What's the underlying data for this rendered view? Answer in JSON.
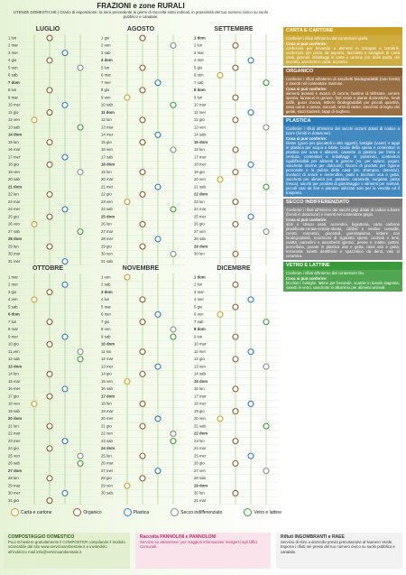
{
  "header": {
    "title": "FRAZIONI e zone RURALI",
    "subtitle": "UTENZE DOMESTICHE | Orario di esposizione: la sera precedente ai giorni di raccolta sotto indicati, in prossimità del tuo numero civico su suolo pubblico e canalale."
  },
  "months": [
    {
      "name": "LUGLIO",
      "days": [
        "1 lun",
        "2 mar",
        "3 mer",
        "4 gio",
        "5 ven",
        "6 sab",
        "7 dom",
        "8 lun",
        "9 mar",
        "10 mer",
        "11 gio",
        "12 ven",
        "13 sab",
        "14 dom",
        "15 lun",
        "16 mar",
        "17 mer",
        "18 gio",
        "19 ven",
        "20 sab",
        "21 dom",
        "22 lun",
        "23 mar",
        "24 mer",
        "25 gio",
        "26 ven",
        "27 sab",
        "28 dom",
        "29 lun",
        "30 mar",
        "31 mer"
      ]
    },
    {
      "name": "AGOSTO",
      "days": [
        "1 gio",
        "2 ven",
        "3 sab",
        "4 dom",
        "5 lun",
        "6 mar",
        "7 mer",
        "8 gio",
        "9 ven",
        "10 sab",
        "11 dom",
        "12 lun",
        "13 mar",
        "14 mer",
        "15 gio",
        "16 ven",
        "17 sab",
        "18 dom",
        "19 lun",
        "20 mar",
        "21 mer",
        "22 gio",
        "23 ven",
        "24 sab",
        "25 dom",
        "26 lun",
        "27 mar",
        "28 mer",
        "29 gio",
        "30 ven",
        "31 sab"
      ]
    },
    {
      "name": "SETTEMBRE",
      "days": [
        "1 dom",
        "2 lun",
        "3 mar",
        "4 mer",
        "5 gio",
        "6 ven",
        "7 sab",
        "8 dom",
        "9 lun",
        "10 mar",
        "11 mer",
        "12 gio",
        "13 ven",
        "14 sab",
        "15 dom",
        "16 lun",
        "17 mar",
        "18 mer",
        "19 gio",
        "20 ven",
        "21 sab",
        "22 dom",
        "23 lun",
        "24 mar",
        "25 mer",
        "26 gio",
        "27 ven",
        "28 sab",
        "29 dom",
        "30 lun"
      ]
    },
    {
      "name": "OTTOBRE",
      "days": [
        "1 mar",
        "2 mer",
        "3 gio",
        "4 ven",
        "5 sab",
        "6 dom",
        "7 lun",
        "8 mar",
        "9 mer",
        "10 gio",
        "11 ven",
        "12 sab",
        "13 dom",
        "14 lun",
        "15 mar",
        "16 mer",
        "17 gio",
        "18 ven",
        "19 sab",
        "20 dom",
        "21 lun",
        "22 mar",
        "23 mer",
        "24 gio",
        "25 ven",
        "26 sab",
        "27 dom",
        "28 lun",
        "29 mar",
        "30 mer",
        "31 gio"
      ]
    },
    {
      "name": "NOVEMBRE",
      "days": [
        "1 ven",
        "2 sab",
        "3 dom",
        "4 lun",
        "5 mar",
        "6 mer",
        "7 gio",
        "8 ven",
        "9 sab",
        "10 dom",
        "11 lun",
        "12 mar",
        "13 mer",
        "14 gio",
        "15 ven",
        "16 sab",
        "17 dom",
        "18 lun",
        "19 mar",
        "20 mer",
        "21 gio",
        "22 ven",
        "23 sab",
        "24 dom",
        "25 lun",
        "26 mar",
        "27 mer",
        "28 gio",
        "29 ven",
        "30 sab"
      ]
    },
    {
      "name": "DICEMBRE",
      "days": [
        "1 dom",
        "2 lun",
        "3 mar",
        "4 mer",
        "5 gio",
        "6 ven",
        "7 sab",
        "8 dom",
        "9 lun",
        "10 mar",
        "11 mer",
        "12 gio",
        "13 ven",
        "14 sab",
        "15 dom",
        "16 lun",
        "17 mar",
        "18 mer",
        "19 gio",
        "20 ven",
        "21 sab",
        "22 dom",
        "23 lun",
        "24 mar",
        "25 mer",
        "26 gio",
        "27 ven",
        "28 sab",
        "29 dom",
        "30 lun",
        "31 mar"
      ]
    }
  ],
  "sections": [
    {
      "title": "CARTA E CARTONE",
      "intro": "Conferire i rifiuti all'interno del contenitore giallo.",
      "label": "Cosa si può conferire:",
      "items": "confezioni per bevande e alimenti in tetrapak e tetrabrik, confezioni per pizza da asporto, fazzoletti e tovaglioli di carta usati, giornali, imballaggi in carta o cartone (es. della pasta, dei biscotti), sacchetti in carta, scontrini."
    },
    {
      "title": "ORGANICO",
      "intro": "Conferire i rifiuti all'interno di sacchetti biodegradabili (non forniti) e inseriti nel contenitore marrone.",
      "label": "Cosa si può conferire:",
      "items": "alimenti avariati e avanzi di cucina, bustine di tè/tisane, cenere spenta, farinacei in genere, fiori recisi e piante domestiche, fondi caffè, gusci d'uova, lettiere biodegradabili per piccoli quantità, ossa carne e pesce, noccioli, resti di carne, stecchini di legno dei gelati, stuzzicadenti, tappi di sughero."
    },
    {
      "title": "PLASTICA",
      "intro": "Conferire i rifiuti all'interno dei sacchi azzurri dotati di codice a barre (forniti in dotazione).",
      "label": "Cosa si può conferire:",
      "items": "blister (gusci per giocattoli o altri oggetti), bottiglie (vuote) e tappi in plastica per acqua e bibite, buste della spesa e contenitori in plastica per uova e alimenti, cassette in plastica per frutta e verdura, contenitori e imballaggi in polistirolo, contenitori rigidi/flessibili per alimenti in genere (es. per salumi, yogurt, vaschette interne per dolciumi), flaconi di prodotti per l'igiene personale e la pulizia della casa (es. shampoo, detersivi), involucri di snack e merendine, piatti e bicchieri usa e getta, sacchetti per alimenti (es. patatine, caramelle, surgelati, pasta fresca), sacchi per prodotti di giardinaggio o alimenti per animali, piccoli vasi da fiori e piantine utilizzati solo per la vendita ed il trasporto."
    },
    {
      "title": "SECCO INDIFFERENZIATO",
      "intro": "Conferire i rifiuti all'interno dei sacchi grigi dotati di codice a barre (forniti in dotazione) e inseriti nel contenitore grigio.",
      "label": "Cosa si può conferire:",
      "items": "abiti e stracci usati, accendini, bigiotteria, carta carbone plastificata-cerata-vetrata-oleata, cd/dvd e relative custodie, cerotti, cosmetici, giocattoli, gommapiuma, lettiere non biodegradabili, mozziconi di sigaretta spenti, occhiali e lenti, ovatta, pannolini e assorbenti igienici, penne e matite, pettini, porcellana, posate in plastica usa e getta, rasoi usa e getta, terracotta, tubetti dentifricio e spazzolino da denti, vasi in ceramica."
    },
    {
      "title": "VETRO E LATTINE",
      "intro": "Conferire i rifiuti all'interno del contenitore blu.",
      "label": "Cosa si può conferire:",
      "items": "bicchieri, bottiglie, lattine per bevande, scatole in banda stagnata, vasetti in vetro, vaschette in alluminio per alimenti animali."
    }
  ],
  "legend": [
    "Carta e cartone",
    "Organico",
    "Plastica",
    "Secco indifferenziato",
    "Vetro e lattine"
  ],
  "footer": [
    {
      "title": "COMPOSTAGGIO DOMESTICO",
      "text": "Puoi richiedere gratuitamente il COMPOSTER compilando il modulo scaricabile dal sito www.servizioambientale.it e inviandolo all'indirizzo mail info@servizioambientale.it"
    },
    {
      "title": "Raccolta PANNOLINI e PANNOLONI",
      "text": "Servizio su attivazione: per maggiori informazioni rivolgersi agli Uffici Comunali."
    },
    {
      "title": "Rifiuti INGOMBRANTI e RAEE",
      "text": "Servizio di ritiro a domicilio previa prenotazione al Numero Verde. Esporre i rifiuti nei pressi del tuo numero civico su suolo pubblico e canalale."
    }
  ]
}
